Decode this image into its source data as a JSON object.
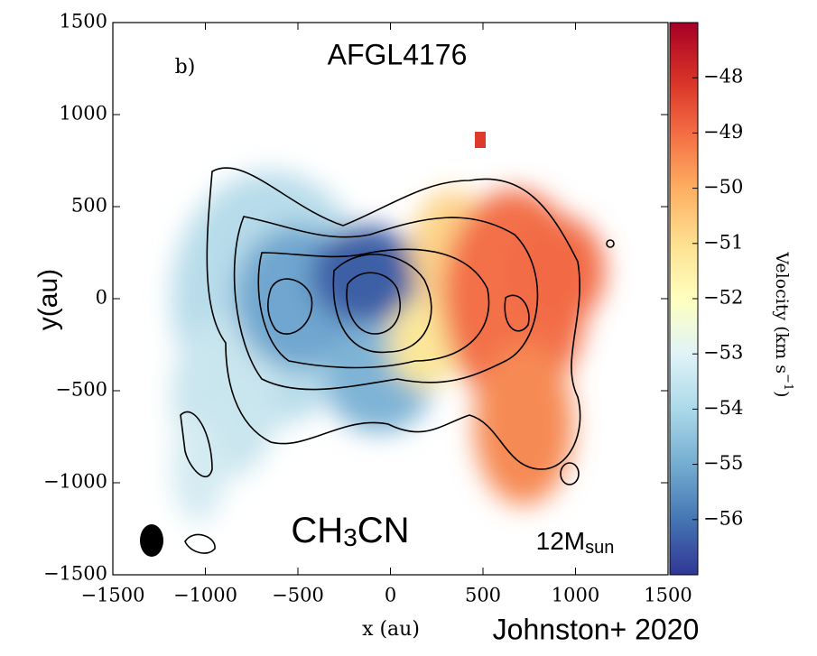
{
  "chart_data": {
    "type": "image",
    "panel_label": "b)",
    "title": "AFGL4176",
    "molecule": [
      "CH",
      "3",
      "CN"
    ],
    "mass_label": [
      "12M",
      "sun"
    ],
    "credit": "Johnston+ 2020",
    "xlabel": "x (au)",
    "ylabel": "y(au)",
    "xlim": [
      -1500,
      1500
    ],
    "ylim": [
      -1500,
      1500
    ],
    "xticks": [
      {
        "value": -1500,
        "label": "−1500"
      },
      {
        "value": -1000,
        "label": "−1000"
      },
      {
        "value": -500,
        "label": "−500"
      },
      0,
      500,
      1000,
      1500
    ],
    "yticks": [
      {
        "value": -1500,
        "label": "−1500"
      },
      {
        "value": -1000,
        "label": "−1000"
      },
      {
        "value": -500,
        "label": "−500"
      },
      0,
      500,
      1000,
      1500
    ],
    "colorbar": {
      "label": [
        "Velocity (km s",
        "−1",
        ")"
      ],
      "clim": [
        -57,
        -47
      ],
      "ticks": [
        {
          "value": -48,
          "label": "−48"
        },
        {
          "value": -49,
          "label": "−49"
        },
        {
          "value": -50,
          "label": "−50"
        },
        {
          "value": -51,
          "label": "−51"
        },
        {
          "value": -52,
          "label": "−52"
        },
        {
          "value": -53,
          "label": "−53"
        },
        {
          "value": -54,
          "label": "−54"
        },
        {
          "value": -55,
          "label": "−55"
        },
        {
          "value": -56,
          "label": "−56"
        }
      ],
      "colors": [
        "#313695",
        "#4575b4",
        "#74add1",
        "#abd9e9",
        "#e0f3f8",
        "#ffffbf",
        "#fee090",
        "#fdae61",
        "#f46d43",
        "#d73027",
        "#a50026"
      ]
    }
  }
}
